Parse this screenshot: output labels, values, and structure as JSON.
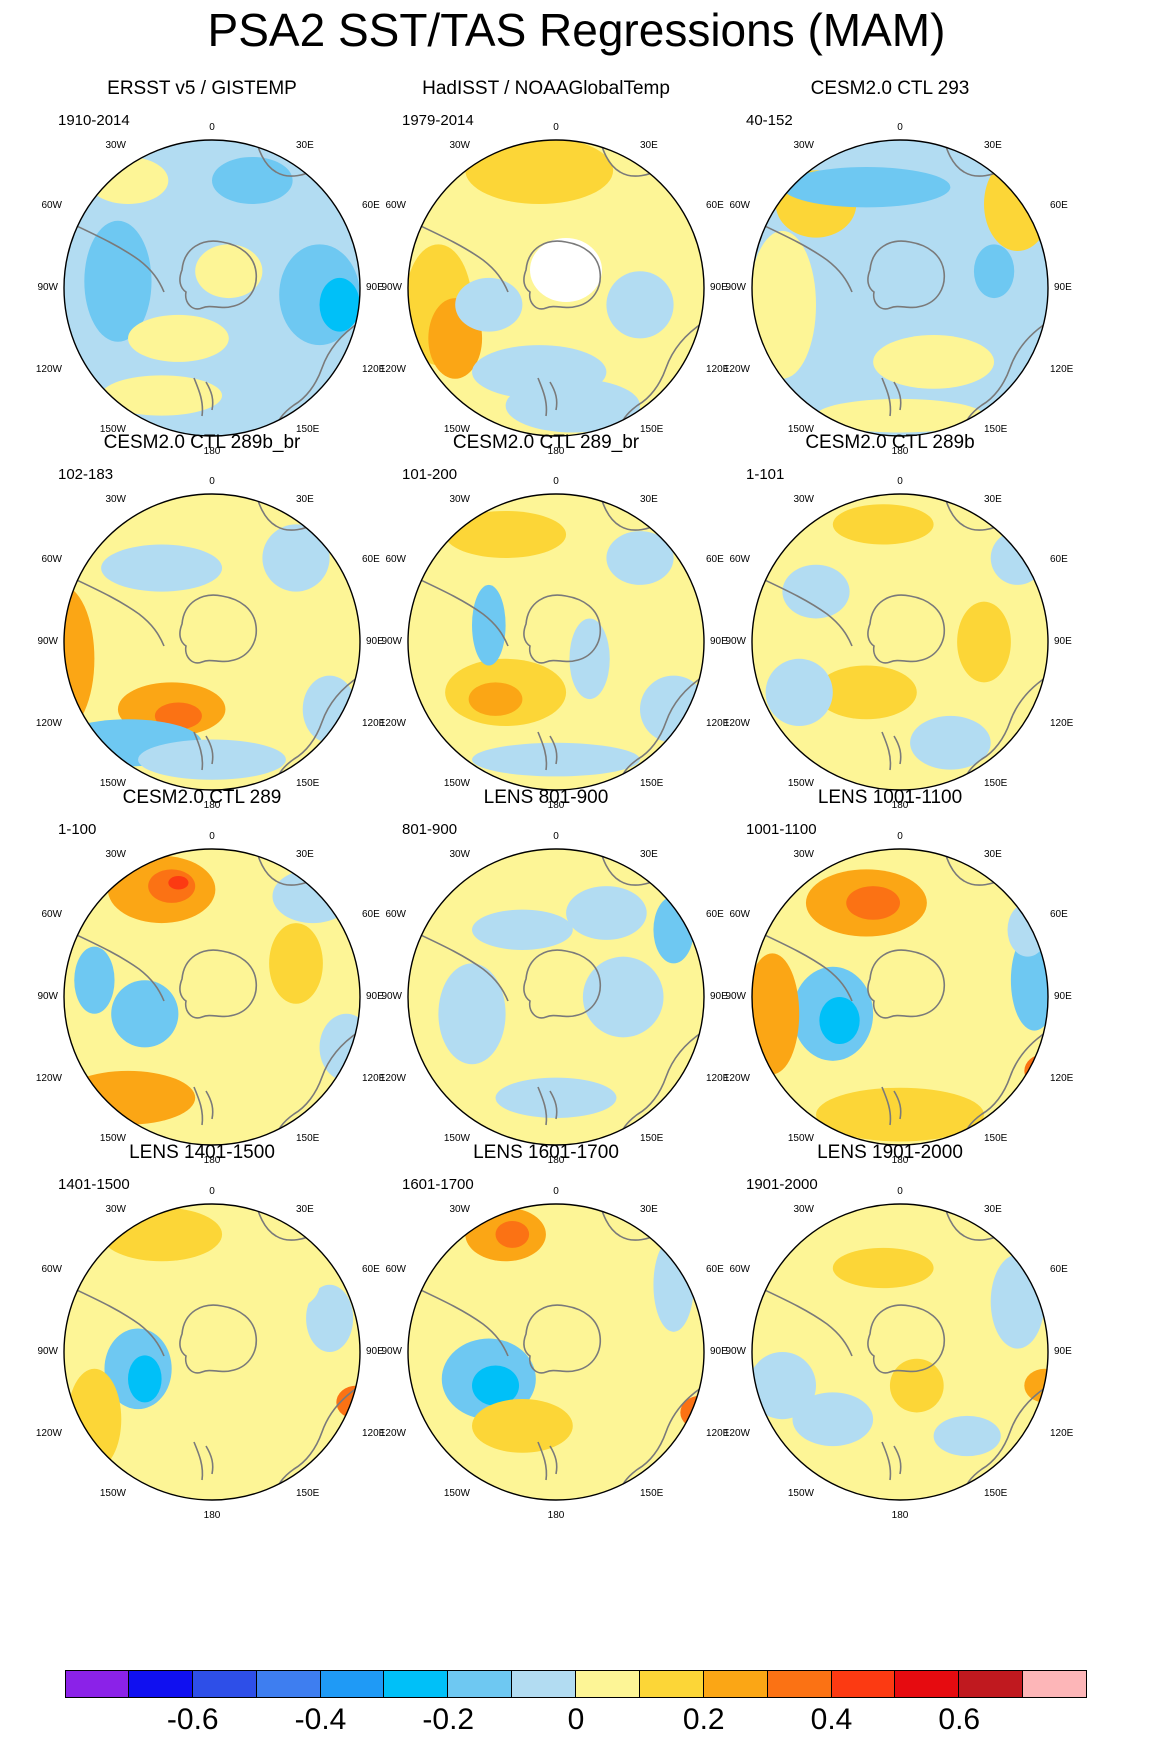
{
  "title": "PSA2 SST/TAS Regressions (MAM)",
  "colors": {
    "levels": [
      "#8b22e8",
      "#1010f0",
      "#2e4fe8",
      "#3e7ef0",
      "#1f9af6",
      "#00c0f8",
      "#6ec8f2",
      "#b2dcf2",
      "#fdf596",
      "#fcd637",
      "#fba615",
      "#fb7214",
      "#fc3a12",
      "#e60b10",
      "#c0191f",
      "#fdb6b8"
    ],
    "land_outline": "#7a7a7a"
  },
  "colorbar": {
    "labels": [
      "-0.6",
      "-0.4",
      "-0.2",
      "0",
      "0.2",
      "0.4",
      "0.6"
    ],
    "label_boundaries": [
      2,
      4,
      6,
      8,
      10,
      12,
      14
    ]
  },
  "map_labels": {
    "top": "0",
    "bottom": "180",
    "n30w": "30W",
    "n30e": "30E",
    "n60w": "60W",
    "n60e": "60E",
    "w90": "90W",
    "e90": "90E",
    "s120w": "120W",
    "s120e": "120E",
    "s150w": "150W",
    "s150e": "150E"
  },
  "panels": [
    {
      "title": "ERSST v5 / GISTEMP",
      "period": "1910-2014",
      "base": 7,
      "blobs": [
        [
          0.25,
          0.18,
          0.12,
          0.07,
          8
        ],
        [
          0.62,
          0.18,
          0.12,
          0.07,
          6
        ],
        [
          0.22,
          0.48,
          0.1,
          0.18,
          6
        ],
        [
          0.82,
          0.52,
          0.12,
          0.15,
          6
        ],
        [
          0.88,
          0.55,
          0.06,
          0.08,
          5
        ],
        [
          0.4,
          0.65,
          0.15,
          0.07,
          8
        ],
        [
          0.35,
          0.82,
          0.18,
          0.06,
          8
        ],
        [
          0.55,
          0.45,
          0.1,
          0.08,
          8
        ]
      ],
      "masked": false
    },
    {
      "title": "HadISST / NOAAGlobalTemp",
      "period": "1979-2014",
      "base": 8,
      "blobs": [
        [
          0.45,
          0.15,
          0.22,
          0.1,
          9
        ],
        [
          0.15,
          0.55,
          0.1,
          0.18,
          9
        ],
        [
          0.2,
          0.65,
          0.08,
          0.12,
          10
        ],
        [
          0.3,
          0.55,
          0.1,
          0.08,
          7
        ],
        [
          0.75,
          0.55,
          0.1,
          0.1,
          7
        ],
        [
          0.55,
          0.85,
          0.2,
          0.08,
          7
        ],
        [
          0.45,
          0.75,
          0.2,
          0.08,
          7
        ]
      ],
      "masked": true
    },
    {
      "title": "CESM2.0 CTL 293",
      "period": "40-152",
      "base": 7,
      "blobs": [
        [
          0.85,
          0.25,
          0.1,
          0.14,
          9
        ],
        [
          0.25,
          0.25,
          0.12,
          0.1,
          9
        ],
        [
          0.15,
          0.55,
          0.1,
          0.22,
          8
        ],
        [
          0.6,
          0.72,
          0.18,
          0.08,
          8
        ],
        [
          0.4,
          0.2,
          0.25,
          0.06,
          6
        ],
        [
          0.78,
          0.45,
          0.06,
          0.08,
          6
        ],
        [
          0.5,
          0.88,
          0.25,
          0.05,
          8
        ]
      ],
      "masked": false
    },
    {
      "title": "CESM2.0 CTL 289b_br",
      "period": "102-183",
      "base": 8,
      "blobs": [
        [
          0.05,
          0.55,
          0.1,
          0.22,
          10
        ],
        [
          0.38,
          0.7,
          0.16,
          0.08,
          10
        ],
        [
          0.4,
          0.72,
          0.07,
          0.04,
          11
        ],
        [
          0.25,
          0.8,
          0.22,
          0.07,
          6
        ],
        [
          0.5,
          0.85,
          0.22,
          0.06,
          7
        ],
        [
          0.75,
          0.25,
          0.1,
          0.1,
          7
        ],
        [
          0.35,
          0.28,
          0.18,
          0.07,
          7
        ],
        [
          0.85,
          0.7,
          0.08,
          0.1,
          7
        ]
      ],
      "masked": false
    },
    {
      "title": "CESM2.0 CTL 289_br",
      "period": "101-200",
      "base": 8,
      "blobs": [
        [
          0.35,
          0.18,
          0.18,
          0.07,
          9
        ],
        [
          0.35,
          0.65,
          0.18,
          0.1,
          9
        ],
        [
          0.32,
          0.67,
          0.08,
          0.05,
          10
        ],
        [
          0.3,
          0.45,
          0.05,
          0.12,
          6
        ],
        [
          0.6,
          0.55,
          0.06,
          0.12,
          7
        ],
        [
          0.75,
          0.25,
          0.1,
          0.08,
          7
        ],
        [
          0.85,
          0.7,
          0.1,
          0.1,
          7
        ],
        [
          0.5,
          0.85,
          0.25,
          0.05,
          7
        ]
      ],
      "masked": false
    },
    {
      "title": "CESM2.0 CTL 289b",
      "period": "1-101",
      "base": 8,
      "blobs": [
        [
          0.45,
          0.15,
          0.15,
          0.06,
          9
        ],
        [
          0.75,
          0.5,
          0.08,
          0.12,
          9
        ],
        [
          0.4,
          0.65,
          0.15,
          0.08,
          9
        ],
        [
          0.25,
          0.35,
          0.1,
          0.08,
          7
        ],
        [
          0.65,
          0.8,
          0.12,
          0.08,
          7
        ],
        [
          0.2,
          0.65,
          0.1,
          0.1,
          7
        ],
        [
          0.85,
          0.25,
          0.08,
          0.08,
          7
        ]
      ],
      "masked": false
    },
    {
      "title": "CESM2.0 CTL 289",
      "period": "1-100",
      "base": 8,
      "blobs": [
        [
          0.35,
          0.18,
          0.16,
          0.1,
          10
        ],
        [
          0.38,
          0.17,
          0.07,
          0.05,
          11
        ],
        [
          0.4,
          0.16,
          0.03,
          0.02,
          12
        ],
        [
          0.25,
          0.8,
          0.2,
          0.08,
          10
        ],
        [
          0.3,
          0.55,
          0.1,
          0.1,
          6
        ],
        [
          0.15,
          0.45,
          0.06,
          0.1,
          6
        ],
        [
          0.75,
          0.4,
          0.08,
          0.12,
          9
        ],
        [
          0.8,
          0.2,
          0.12,
          0.08,
          7
        ],
        [
          0.9,
          0.65,
          0.08,
          0.1,
          7
        ]
      ],
      "masked": false
    },
    {
      "title": "LENS 801-900",
      "period": "801-900",
      "base": 8,
      "blobs": [
        [
          0.25,
          0.55,
          0.1,
          0.15,
          7
        ],
        [
          0.65,
          0.25,
          0.12,
          0.08,
          7
        ],
        [
          0.7,
          0.5,
          0.12,
          0.12,
          7
        ],
        [
          0.85,
          0.3,
          0.06,
          0.1,
          6
        ],
        [
          0.4,
          0.3,
          0.15,
          0.06,
          7
        ],
        [
          0.5,
          0.8,
          0.18,
          0.06,
          7
        ]
      ],
      "masked": false
    },
    {
      "title": "LENS 1001-1100",
      "period": "1001-1100",
      "base": 8,
      "blobs": [
        [
          0.4,
          0.22,
          0.18,
          0.1,
          10
        ],
        [
          0.42,
          0.22,
          0.08,
          0.05,
          11
        ],
        [
          0.3,
          0.55,
          0.12,
          0.14,
          6
        ],
        [
          0.32,
          0.57,
          0.06,
          0.07,
          5
        ],
        [
          0.12,
          0.55,
          0.08,
          0.18,
          10
        ],
        [
          0.5,
          0.85,
          0.25,
          0.08,
          9
        ],
        [
          0.9,
          0.45,
          0.07,
          0.15,
          6
        ],
        [
          0.93,
          0.72,
          0.06,
          0.05,
          11
        ],
        [
          0.88,
          0.3,
          0.06,
          0.08,
          7
        ]
      ],
      "masked": false
    },
    {
      "title": "LENS 1401-1500",
      "period": "1401-1500",
      "base": 8,
      "blobs": [
        [
          0.35,
          0.15,
          0.18,
          0.08,
          9
        ],
        [
          0.28,
          0.55,
          0.1,
          0.12,
          6
        ],
        [
          0.3,
          0.58,
          0.05,
          0.07,
          5
        ],
        [
          0.15,
          0.7,
          0.08,
          0.15,
          9
        ],
        [
          0.93,
          0.65,
          0.06,
          0.05,
          11
        ],
        [
          0.85,
          0.4,
          0.07,
          0.1,
          7
        ],
        [
          0.45,
          0.8,
          0.18,
          0.07,
          8
        ],
        [
          0.7,
          0.3,
          0.12,
          0.08,
          8
        ]
      ],
      "masked": false
    },
    {
      "title": "LENS 1601-1700",
      "period": "1601-1700",
      "base": 8,
      "blobs": [
        [
          0.35,
          0.15,
          0.12,
          0.08,
          10
        ],
        [
          0.37,
          0.15,
          0.05,
          0.04,
          11
        ],
        [
          0.3,
          0.58,
          0.14,
          0.12,
          6
        ],
        [
          0.32,
          0.6,
          0.07,
          0.06,
          5
        ],
        [
          0.4,
          0.72,
          0.15,
          0.08,
          9
        ],
        [
          0.85,
          0.3,
          0.06,
          0.14,
          7
        ],
        [
          0.93,
          0.68,
          0.06,
          0.05,
          11
        ],
        [
          0.65,
          0.25,
          0.1,
          0.08,
          8
        ],
        [
          0.55,
          0.88,
          0.2,
          0.05,
          8
        ]
      ],
      "masked": false
    },
    {
      "title": "LENS 1901-2000",
      "period": "1901-2000",
      "base": 8,
      "blobs": [
        [
          0.15,
          0.6,
          0.1,
          0.1,
          7
        ],
        [
          0.3,
          0.7,
          0.12,
          0.08,
          7
        ],
        [
          0.85,
          0.35,
          0.08,
          0.14,
          7
        ],
        [
          0.93,
          0.6,
          0.06,
          0.05,
          10
        ],
        [
          0.45,
          0.25,
          0.15,
          0.06,
          9
        ],
        [
          0.55,
          0.6,
          0.08,
          0.08,
          9
        ],
        [
          0.7,
          0.75,
          0.1,
          0.06,
          7
        ]
      ],
      "masked": false
    }
  ]
}
